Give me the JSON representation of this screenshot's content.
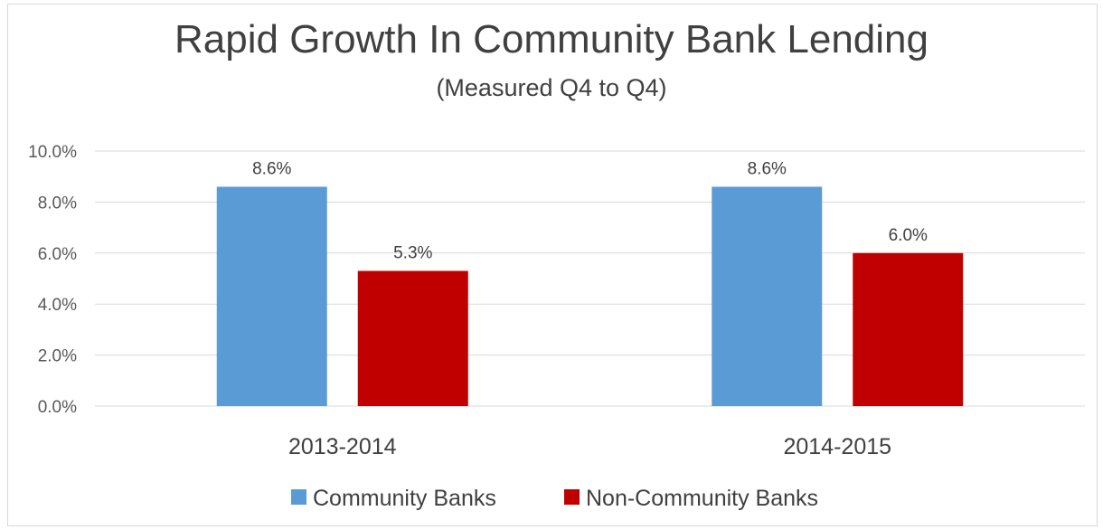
{
  "chart_data": {
    "type": "bar",
    "title": "Rapid Growth In Community Bank Lending",
    "subtitle": "(Measured Q4 to Q4)",
    "categories": [
      "2013-2014",
      "2014-2015"
    ],
    "series": [
      {
        "name": "Community Banks",
        "color": "#5b9bd5",
        "values": [
          8.6,
          8.6
        ],
        "labels": [
          "8.6%",
          "8.6%"
        ]
      },
      {
        "name": "Non-Community Banks",
        "color": "#c00000",
        "values": [
          5.3,
          6.0
        ],
        "labels": [
          "5.3%",
          "6.0%"
        ]
      }
    ],
    "y_ticks": [
      "0.0%",
      "2.0%",
      "4.0%",
      "6.0%",
      "8.0%",
      "10.0%"
    ],
    "ylim": [
      0,
      10
    ],
    "grid": true,
    "legend_position": "bottom"
  }
}
